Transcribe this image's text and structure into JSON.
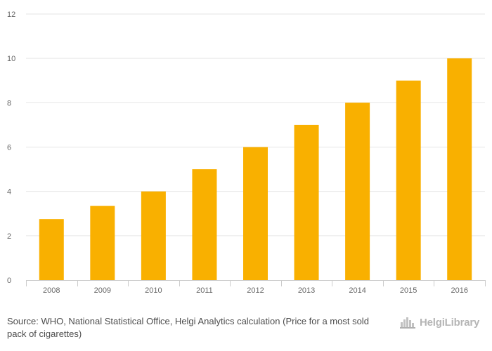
{
  "chart_data": {
    "type": "bar",
    "categories": [
      "2008",
      "2009",
      "2010",
      "2011",
      "2012",
      "2013",
      "2014",
      "2015",
      "2016"
    ],
    "values": [
      2.75,
      3.35,
      4.0,
      5.0,
      6.0,
      7.0,
      8.0,
      9.0,
      10.0
    ],
    "ylim": [
      0,
      12
    ],
    "yticks": [
      0,
      2,
      4,
      6,
      8,
      10,
      12
    ],
    "grid": true,
    "colors": {
      "bar": "#f9b000",
      "grid": "#e6e6e6",
      "axis": "#cccccc",
      "tick_text": "#666666"
    }
  },
  "footer": {
    "source_label": "Source:",
    "source_text": "WHO, National Statistical Office, Helgi Analytics calculation (Price for a most sold pack of cigarettes)"
  },
  "logo": {
    "text": "HelgiLibrary",
    "icon": "city-skyline-icon"
  }
}
